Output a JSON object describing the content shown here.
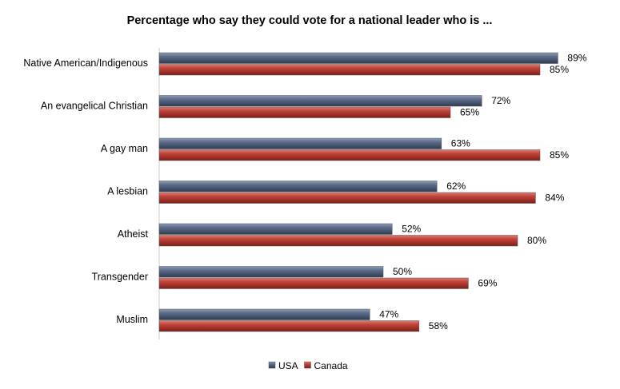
{
  "chart_data": {
    "type": "bar",
    "orientation": "horizontal",
    "title": "Percentage who say they could vote for a national leader who is ...",
    "xlabel": "",
    "ylabel": "",
    "xlim": [
      0,
      100
    ],
    "value_suffix": "%",
    "categories": [
      "Native American/Indigenous",
      "An evangelical Christian",
      "A gay man",
      "A lesbian",
      "Atheist",
      "Transgender",
      "Muslim"
    ],
    "series": [
      {
        "name": "USA",
        "color": "#4a5a75",
        "values": [
          89,
          72,
          63,
          62,
          52,
          50,
          47
        ]
      },
      {
        "name": "Canada",
        "color": "#b7372f",
        "values": [
          85,
          65,
          85,
          84,
          80,
          69,
          58
        ]
      }
    ],
    "legend_position": "bottom-center",
    "grid": false
  }
}
